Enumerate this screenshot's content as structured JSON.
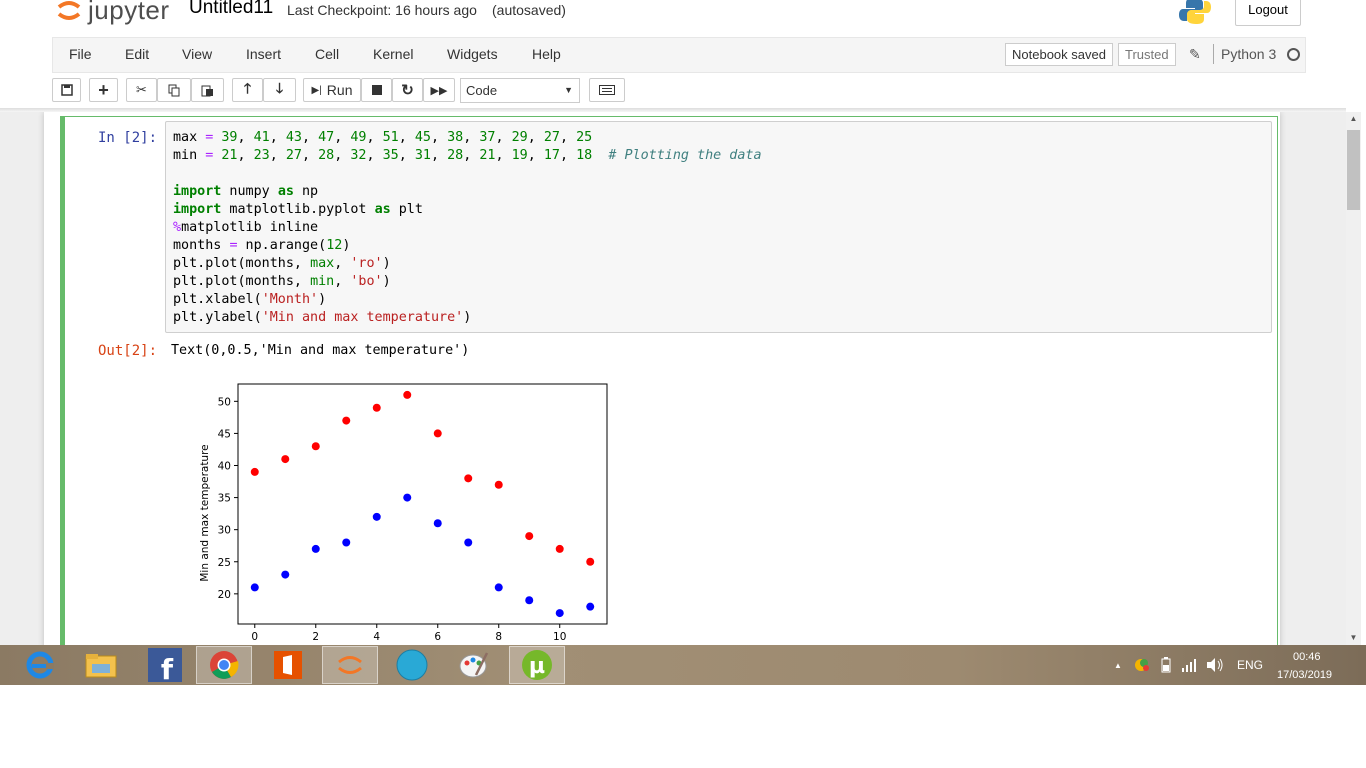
{
  "header": {
    "logo_text": "jupyter",
    "notebook_name": "Untitled11",
    "checkpoint": "Last Checkpoint: 16 hours ago",
    "autosave": "(autosaved)",
    "logout_label": "Logout"
  },
  "menubar": {
    "items": [
      "File",
      "Edit",
      "View",
      "Insert",
      "Cell",
      "Kernel",
      "Widgets",
      "Help"
    ],
    "notebook_saved": "Notebook saved",
    "trusted": "Trusted",
    "kernel_name": "Python 3"
  },
  "toolbar": {
    "run_label": "Run",
    "cell_type": "Code",
    "buttons": [
      "save-icon",
      "plus-icon",
      "scissors-icon",
      "copy-icon",
      "paste-icon",
      "arrow-up-icon",
      "arrow-down-icon",
      "run-icon",
      "stop-icon",
      "restart-icon",
      "fast-forward-icon",
      "keyboard-icon"
    ]
  },
  "cell": {
    "in_prompt": "In [2]:",
    "code_lines": [
      "max = 39, 41, 43, 47, 49, 51, 45, 38, 37, 29, 27, 25",
      "min = 21, 23, 27, 28, 32, 35, 31, 28, 21, 19, 17, 18  # Plotting the data",
      "",
      "import numpy as np",
      "import matplotlib.pyplot as plt",
      "%matplotlib inline",
      "months = np.arange(12)",
      "plt.plot(months, max, 'ro')",
      "plt.plot(months, min, 'bo')",
      "plt.xlabel('Month')",
      "plt.ylabel('Min and max temperature')"
    ],
    "out_prompt": "Out[2]:",
    "out_text": "Text(0,0.5,'Min and max temperature')"
  },
  "chart_data": {
    "type": "scatter",
    "x": [
      0,
      1,
      2,
      3,
      4,
      5,
      6,
      7,
      8,
      9,
      10,
      11
    ],
    "series": [
      {
        "color": "#ff0000",
        "values": [
          39,
          41,
          43,
          47,
          49,
          51,
          45,
          38,
          37,
          29,
          27,
          25
        ]
      },
      {
        "color": "#0000ff",
        "values": [
          21,
          23,
          27,
          28,
          32,
          35,
          31,
          28,
          21,
          19,
          17,
          18
        ]
      }
    ],
    "xticks": [
      0,
      2,
      4,
      6,
      8,
      10
    ],
    "yticks": [
      20,
      25,
      30,
      35,
      40,
      45,
      50
    ],
    "xlim": [
      -0.55,
      11.55
    ],
    "ylim": [
      15.3,
      52.7
    ],
    "ylabel": "Min and max temperature",
    "xlabel": "",
    "grid": false
  },
  "taskbar": {
    "apps": [
      "internet-explorer-icon",
      "file-explorer-icon",
      "facebook-icon",
      "chrome-icon",
      "office-icon",
      "jupyter-icon",
      "circle-app-icon",
      "paint-icon",
      "utorrent-icon"
    ],
    "language": "ENG",
    "time": "00:46",
    "date": "17/03/2019"
  }
}
